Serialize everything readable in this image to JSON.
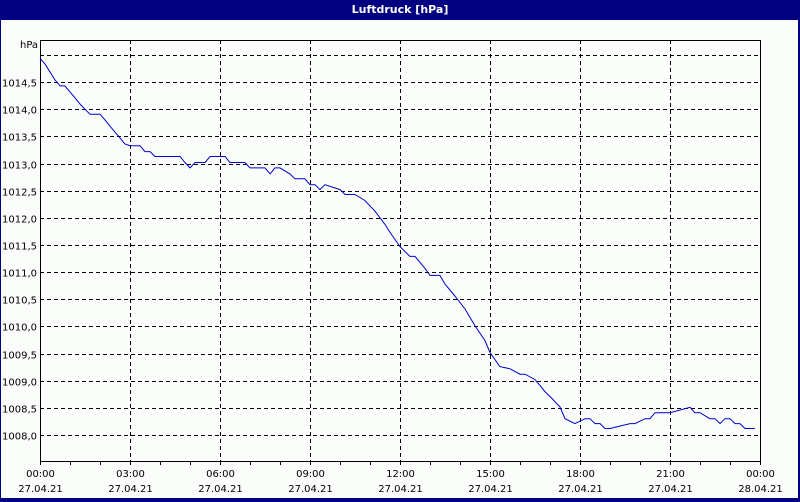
{
  "window": {
    "title": "Luftdruck [hPa]",
    "title_bg": "#000080",
    "title_fg": "#ffffff",
    "background": "#fbfdfb"
  },
  "chart_data": {
    "type": "line",
    "title": "Luftdruck [hPa]",
    "ylabel": "hPa",
    "xlabel": "",
    "ylim": [
      1007.55,
      1015.28
    ],
    "xlim_hours": [
      0,
      24
    ],
    "grid": true,
    "grid_style": "dashed",
    "line_color": "#0000cc",
    "y_ticks": [
      {
        "value": 1015.0,
        "label": ""
      },
      {
        "value": 1014.5,
        "label": "1014,5"
      },
      {
        "value": 1014.0,
        "label": "1014,0"
      },
      {
        "value": 1013.5,
        "label": "1013,5"
      },
      {
        "value": 1013.0,
        "label": "1013,0"
      },
      {
        "value": 1012.5,
        "label": "1012,5"
      },
      {
        "value": 1012.0,
        "label": "1012,0"
      },
      {
        "value": 1011.5,
        "label": "1011,5"
      },
      {
        "value": 1011.0,
        "label": "1011,0"
      },
      {
        "value": 1010.5,
        "label": "1010,5"
      },
      {
        "value": 1010.0,
        "label": "1010,0"
      },
      {
        "value": 1009.5,
        "label": "1009,5"
      },
      {
        "value": 1009.0,
        "label": "1009,0"
      },
      {
        "value": 1008.5,
        "label": "1008,5"
      },
      {
        "value": 1008.0,
        "label": "1008,0"
      }
    ],
    "x_ticks": [
      {
        "hour": 0,
        "time": "00:00",
        "date": "27.04.21"
      },
      {
        "hour": 3,
        "time": "03:00",
        "date": "27.04.21"
      },
      {
        "hour": 6,
        "time": "06:00",
        "date": "27.04.21"
      },
      {
        "hour": 9,
        "time": "09:00",
        "date": "27.04.21"
      },
      {
        "hour": 12,
        "time": "12:00",
        "date": "27.04.21"
      },
      {
        "hour": 15,
        "time": "15:00",
        "date": "27.04.21"
      },
      {
        "hour": 18,
        "time": "18:00",
        "date": "27.04.21"
      },
      {
        "hour": 21,
        "time": "21:00",
        "date": "27.04.21"
      },
      {
        "hour": 24,
        "time": "00:00",
        "date": "28.04.21"
      }
    ],
    "series": [
      {
        "name": "Luftdruck",
        "x_hours": [
          0.0,
          0.17,
          0.33,
          0.5,
          0.67,
          0.83,
          1.0,
          1.17,
          1.33,
          1.5,
          1.67,
          2.0,
          2.17,
          2.33,
          2.5,
          2.67,
          2.83,
          3.0,
          3.33,
          3.5,
          3.67,
          3.83,
          4.67,
          4.83,
          5.0,
          5.17,
          5.5,
          5.67,
          6.17,
          6.33,
          6.83,
          7.0,
          7.5,
          7.67,
          7.83,
          8.0,
          8.33,
          8.5,
          8.83,
          9.0,
          9.17,
          9.33,
          9.5,
          10.0,
          10.17,
          10.5,
          10.83,
          11.17,
          11.5,
          11.67,
          12.0,
          12.33,
          12.5,
          12.83,
          13.0,
          13.33,
          13.5,
          13.83,
          14.17,
          14.5,
          14.83,
          15.0,
          15.33,
          15.67,
          16.0,
          16.17,
          16.5,
          16.67,
          16.83,
          17.0,
          17.17,
          17.33,
          17.5,
          17.83,
          18.17,
          18.33,
          18.5,
          18.67,
          18.83,
          19.0,
          19.67,
          19.83,
          20.17,
          20.33,
          20.5,
          20.67,
          20.83,
          21.0,
          21.67,
          21.83,
          22.0,
          22.33,
          22.5,
          22.67,
          22.83,
          23.0,
          23.17,
          23.33,
          23.5,
          23.67,
          23.83
        ],
        "values": [
          1014.94,
          1014.83,
          1014.69,
          1014.54,
          1014.43,
          1014.43,
          1014.32,
          1014.21,
          1014.1,
          1014.0,
          1013.91,
          1013.91,
          1013.8,
          1013.69,
          1013.58,
          1013.47,
          1013.36,
          1013.33,
          1013.33,
          1013.22,
          1013.22,
          1013.13,
          1013.13,
          1013.02,
          1012.92,
          1013.02,
          1013.02,
          1013.13,
          1013.13,
          1013.02,
          1013.02,
          1012.92,
          1012.92,
          1012.81,
          1012.92,
          1012.92,
          1012.81,
          1012.72,
          1012.72,
          1012.61,
          1012.61,
          1012.52,
          1012.61,
          1012.52,
          1012.43,
          1012.43,
          1012.32,
          1012.12,
          1011.88,
          1011.73,
          1011.47,
          1011.29,
          1011.29,
          1011.07,
          1010.94,
          1010.94,
          1010.78,
          1010.56,
          1010.32,
          1010.01,
          1009.74,
          1009.52,
          1009.26,
          1009.22,
          1009.12,
          1009.12,
          1009.02,
          1008.91,
          1008.8,
          1008.71,
          1008.61,
          1008.52,
          1008.3,
          1008.21,
          1008.3,
          1008.3,
          1008.21,
          1008.21,
          1008.12,
          1008.12,
          1008.21,
          1008.21,
          1008.3,
          1008.3,
          1008.41,
          1008.41,
          1008.41,
          1008.41,
          1008.51,
          1008.41,
          1008.41,
          1008.3,
          1008.3,
          1008.21,
          1008.3,
          1008.3,
          1008.21,
          1008.21,
          1008.12,
          1008.12,
          1008.12
        ]
      }
    ]
  }
}
